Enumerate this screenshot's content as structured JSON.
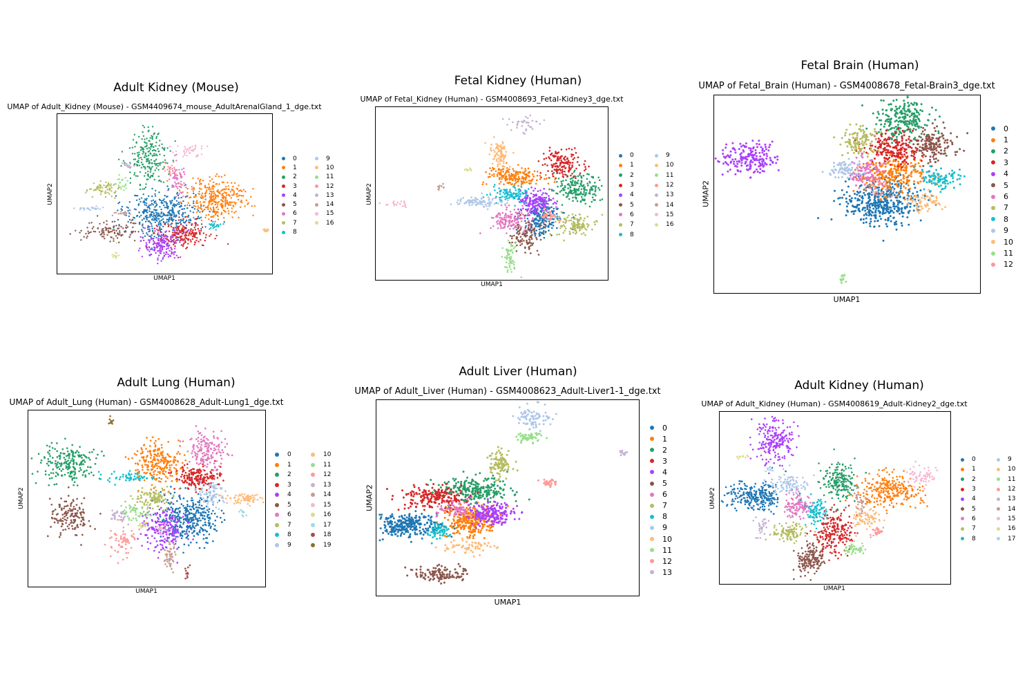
{
  "palette": [
    "#1f77b4",
    "#ff7f0e",
    "#279e68",
    "#d62728",
    "#aa40fc",
    "#8c564b",
    "#e377c2",
    "#b5bd61",
    "#17becf",
    "#aec7e8",
    "#ffbb78",
    "#98df8a",
    "#ff9896",
    "#c5b0d5",
    "#c49c94",
    "#f7b6d2",
    "#dbdb8d",
    "#9edae5",
    "#ad494a",
    "#8c6d31"
  ],
  "chart_data": [
    {
      "type": "scatter",
      "title": "Adult Kidney (Mouse)",
      "subtitle": "UMAP of Adult_Kidney (Mouse) - GSM4409674_mouse_AdultArenalGland_1_dge.txt",
      "xlabel": "UMAP1",
      "ylabel": "UMAP2",
      "legend_position": "right",
      "legend_columns": 2,
      "legend": [
        "0",
        "1",
        "2",
        "3",
        "4",
        "5",
        "6",
        "7",
        "8",
        "9",
        "10",
        "11",
        "12",
        "13",
        "14",
        "15",
        "16"
      ],
      "clusters": [
        {
          "label": "0",
          "cx": 0.49,
          "cy": 0.63,
          "sx": 0.09,
          "sy": 0.07,
          "n": 420
        },
        {
          "label": "1",
          "cx": 0.74,
          "cy": 0.53,
          "sx": 0.07,
          "sy": 0.06,
          "n": 330
        },
        {
          "label": "2",
          "cx": 0.42,
          "cy": 0.28,
          "sx": 0.045,
          "sy": 0.09,
          "n": 220
        },
        {
          "label": "3",
          "cx": 0.59,
          "cy": 0.75,
          "sx": 0.06,
          "sy": 0.04,
          "n": 200
        },
        {
          "label": "4",
          "cx": 0.48,
          "cy": 0.82,
          "sx": 0.05,
          "sy": 0.05,
          "n": 180
        },
        {
          "label": "5",
          "cx": 0.24,
          "cy": 0.73,
          "sx": 0.06,
          "sy": 0.03,
          "n": 110
        },
        {
          "label": "6",
          "cx": 0.56,
          "cy": 0.4,
          "sx": 0.025,
          "sy": 0.06,
          "n": 70
        },
        {
          "label": "7",
          "cx": 0.22,
          "cy": 0.47,
          "sx": 0.04,
          "sy": 0.025,
          "n": 70
        },
        {
          "label": "8",
          "cx": 0.73,
          "cy": 0.7,
          "sx": 0.015,
          "sy": 0.012,
          "n": 25
        },
        {
          "label": "9",
          "cx": 0.15,
          "cy": 0.59,
          "sx": 0.03,
          "sy": 0.006,
          "n": 25
        },
        {
          "label": "10",
          "cx": 0.97,
          "cy": 0.73,
          "sx": 0.012,
          "sy": 0.006,
          "n": 15
        },
        {
          "label": "11",
          "cx": 0.3,
          "cy": 0.44,
          "sx": 0.015,
          "sy": 0.025,
          "n": 20
        },
        {
          "label": "12",
          "cx": 0.53,
          "cy": 0.35,
          "sx": 0.012,
          "sy": 0.02,
          "n": 20
        },
        {
          "label": "13",
          "cx": 0.33,
          "cy": 0.32,
          "sx": 0.015,
          "sy": 0.012,
          "n": 15
        },
        {
          "label": "14",
          "cx": 0.3,
          "cy": 0.62,
          "sx": 0.02,
          "sy": 0.012,
          "n": 20
        },
        {
          "label": "15",
          "cx": 0.62,
          "cy": 0.23,
          "sx": 0.035,
          "sy": 0.025,
          "n": 40
        },
        {
          "label": "16",
          "cx": 0.27,
          "cy": 0.86,
          "sx": 0.01,
          "sy": 0.03,
          "n": 12
        }
      ]
    },
    {
      "type": "scatter",
      "title": "Fetal Kidney (Human)",
      "subtitle": "UMAP of Fetal_Kidney (Human) - GSM4008693_Fetal-Kidney3_dge.txt",
      "xlabel": "UMAP1",
      "ylabel": "UMAP2",
      "legend_position": "right",
      "legend_columns": 2,
      "legend": [
        "0",
        "1",
        "2",
        "3",
        "4",
        "5",
        "6",
        "7",
        "8",
        "9",
        "10",
        "11",
        "12",
        "13",
        "14",
        "15",
        "16"
      ],
      "clusters": [
        {
          "label": "0",
          "cx": 0.72,
          "cy": 0.64,
          "sx": 0.04,
          "sy": 0.05,
          "n": 220
        },
        {
          "label": "1",
          "cx": 0.6,
          "cy": 0.4,
          "sx": 0.06,
          "sy": 0.03,
          "n": 200
        },
        {
          "label": "2",
          "cx": 0.87,
          "cy": 0.47,
          "sx": 0.05,
          "sy": 0.04,
          "n": 200
        },
        {
          "label": "3",
          "cx": 0.8,
          "cy": 0.33,
          "sx": 0.04,
          "sy": 0.04,
          "n": 160
        },
        {
          "label": "4",
          "cx": 0.69,
          "cy": 0.55,
          "sx": 0.04,
          "sy": 0.035,
          "n": 170
        },
        {
          "label": "5",
          "cx": 0.65,
          "cy": 0.75,
          "sx": 0.035,
          "sy": 0.05,
          "n": 120
        },
        {
          "label": "6",
          "cx": 0.58,
          "cy": 0.65,
          "sx": 0.04,
          "sy": 0.035,
          "n": 130
        },
        {
          "label": "7",
          "cx": 0.86,
          "cy": 0.68,
          "sx": 0.04,
          "sy": 0.03,
          "n": 120
        },
        {
          "label": "8",
          "cx": 0.58,
          "cy": 0.5,
          "sx": 0.04,
          "sy": 0.025,
          "n": 100
        },
        {
          "label": "9",
          "cx": 0.45,
          "cy": 0.55,
          "sx": 0.06,
          "sy": 0.015,
          "n": 90
        },
        {
          "label": "10",
          "cx": 0.53,
          "cy": 0.27,
          "sx": 0.02,
          "sy": 0.04,
          "n": 90
        },
        {
          "label": "11",
          "cx": 0.58,
          "cy": 0.87,
          "sx": 0.015,
          "sy": 0.05,
          "n": 60
        },
        {
          "label": "12",
          "cx": 0.75,
          "cy": 0.63,
          "sx": 0.02,
          "sy": 0.02,
          "n": 40
        },
        {
          "label": "13",
          "cx": 0.63,
          "cy": 0.1,
          "sx": 0.035,
          "sy": 0.025,
          "n": 35
        },
        {
          "label": "14",
          "cx": 0.28,
          "cy": 0.46,
          "sx": 0.01,
          "sy": 0.008,
          "n": 10
        },
        {
          "label": "15",
          "cx": 0.09,
          "cy": 0.56,
          "sx": 0.03,
          "sy": 0.01,
          "n": 20
        },
        {
          "label": "16",
          "cx": 0.4,
          "cy": 0.36,
          "sx": 0.012,
          "sy": 0.006,
          "n": 10
        }
      ]
    },
    {
      "type": "scatter",
      "title": "Fetal Brain (Human)",
      "subtitle": "UMAP of Fetal_Brain (Human) - GSM4008678_Fetal-Brain3_dge.txt",
      "xlabel": "UMAP1",
      "ylabel": "UMAP2",
      "legend_position": "right",
      "legend_columns": 1,
      "legend": [
        "0",
        "1",
        "2",
        "3",
        "4",
        "5",
        "6",
        "7",
        "8",
        "9",
        "10",
        "11",
        "12"
      ],
      "clusters": [
        {
          "label": "0",
          "cx": 0.63,
          "cy": 0.54,
          "sx": 0.07,
          "sy": 0.06,
          "n": 420
        },
        {
          "label": "1",
          "cx": 0.67,
          "cy": 0.4,
          "sx": 0.06,
          "sy": 0.05,
          "n": 260
        },
        {
          "label": "2",
          "cx": 0.71,
          "cy": 0.12,
          "sx": 0.055,
          "sy": 0.05,
          "n": 240
        },
        {
          "label": "3",
          "cx": 0.68,
          "cy": 0.27,
          "sx": 0.05,
          "sy": 0.04,
          "n": 200
        },
        {
          "label": "4",
          "cx": 0.13,
          "cy": 0.32,
          "sx": 0.055,
          "sy": 0.04,
          "n": 200
        },
        {
          "label": "5",
          "cx": 0.82,
          "cy": 0.25,
          "sx": 0.04,
          "sy": 0.04,
          "n": 160
        },
        {
          "label": "6",
          "cx": 0.57,
          "cy": 0.39,
          "sx": 0.035,
          "sy": 0.04,
          "n": 110
        },
        {
          "label": "7",
          "cx": 0.55,
          "cy": 0.23,
          "sx": 0.035,
          "sy": 0.035,
          "n": 110
        },
        {
          "label": "8",
          "cx": 0.85,
          "cy": 0.42,
          "sx": 0.04,
          "sy": 0.025,
          "n": 90
        },
        {
          "label": "9",
          "cx": 0.49,
          "cy": 0.37,
          "sx": 0.03,
          "sy": 0.025,
          "n": 70
        },
        {
          "label": "10",
          "cx": 0.8,
          "cy": 0.54,
          "sx": 0.03,
          "sy": 0.025,
          "n": 60
        },
        {
          "label": "11",
          "cx": 0.48,
          "cy": 0.93,
          "sx": 0.006,
          "sy": 0.015,
          "n": 12
        },
        {
          "label": "12",
          "cx": 0.61,
          "cy": 0.47,
          "sx": 0.02,
          "sy": 0.02,
          "n": 30
        }
      ]
    },
    {
      "type": "scatter",
      "title": "Adult Lung (Human)",
      "subtitle": "UMAP of Adult_Lung (Human) - GSM4008628_Adult-Lung1_dge.txt",
      "xlabel": "UMAP1",
      "ylabel": "UMAP2",
      "legend_position": "right",
      "legend_columns": 2,
      "legend": [
        "0",
        "1",
        "2",
        "3",
        "4",
        "5",
        "6",
        "7",
        "8",
        "9",
        "10",
        "11",
        "12",
        "13",
        "14",
        "15",
        "16",
        "17",
        "18",
        "19"
      ],
      "clusters": [
        {
          "label": "0",
          "cx": 0.68,
          "cy": 0.62,
          "sx": 0.06,
          "sy": 0.07,
          "n": 360
        },
        {
          "label": "1",
          "cx": 0.55,
          "cy": 0.3,
          "sx": 0.05,
          "sy": 0.06,
          "n": 240
        },
        {
          "label": "2",
          "cx": 0.17,
          "cy": 0.3,
          "sx": 0.06,
          "sy": 0.05,
          "n": 210
        },
        {
          "label": "3",
          "cx": 0.71,
          "cy": 0.38,
          "sx": 0.05,
          "sy": 0.035,
          "n": 170
        },
        {
          "label": "4",
          "cx": 0.57,
          "cy": 0.67,
          "sx": 0.045,
          "sy": 0.06,
          "n": 200
        },
        {
          "label": "5",
          "cx": 0.18,
          "cy": 0.6,
          "sx": 0.04,
          "sy": 0.05,
          "n": 150
        },
        {
          "label": "6",
          "cx": 0.75,
          "cy": 0.23,
          "sx": 0.04,
          "sy": 0.05,
          "n": 150
        },
        {
          "label": "7",
          "cx": 0.53,
          "cy": 0.5,
          "sx": 0.04,
          "sy": 0.03,
          "n": 110
        },
        {
          "label": "8",
          "cx": 0.43,
          "cy": 0.38,
          "sx": 0.05,
          "sy": 0.015,
          "n": 60
        },
        {
          "label": "9",
          "cx": 0.78,
          "cy": 0.48,
          "sx": 0.03,
          "sy": 0.03,
          "n": 70
        },
        {
          "label": "10",
          "cx": 0.92,
          "cy": 0.5,
          "sx": 0.04,
          "sy": 0.015,
          "n": 70
        },
        {
          "label": "11",
          "cx": 0.45,
          "cy": 0.58,
          "sx": 0.03,
          "sy": 0.02,
          "n": 50
        },
        {
          "label": "12",
          "cx": 0.4,
          "cy": 0.75,
          "sx": 0.03,
          "sy": 0.05,
          "n": 60
        },
        {
          "label": "13",
          "cx": 0.38,
          "cy": 0.6,
          "sx": 0.02,
          "sy": 0.015,
          "n": 30
        },
        {
          "label": "14",
          "cx": 0.6,
          "cy": 0.83,
          "sx": 0.012,
          "sy": 0.05,
          "n": 50
        },
        {
          "label": "15",
          "cx": 0.56,
          "cy": 0.68,
          "sx": 0.015,
          "sy": 0.015,
          "n": 20
        },
        {
          "label": "16",
          "cx": 0.48,
          "cy": 0.65,
          "sx": 0.01,
          "sy": 0.01,
          "n": 10
        },
        {
          "label": "17",
          "cx": 0.91,
          "cy": 0.58,
          "sx": 0.01,
          "sy": 0.01,
          "n": 10
        },
        {
          "label": "18",
          "cx": 0.67,
          "cy": 0.92,
          "sx": 0.008,
          "sy": 0.02,
          "n": 12
        },
        {
          "label": "19",
          "cx": 0.35,
          "cy": 0.06,
          "sx": 0.005,
          "sy": 0.015,
          "n": 10
        }
      ]
    },
    {
      "type": "scatter",
      "title": "Adult Liver (Human)",
      "subtitle": "UMAP of Adult_Liver (Human) - GSM4008623_Adult-Liver1-1_dge.txt",
      "xlabel": "UMAP1",
      "ylabel": "UMAP2",
      "legend_position": "right",
      "legend_columns": 1,
      "legend": [
        "0",
        "1",
        "2",
        "3",
        "4",
        "5",
        "6",
        "7",
        "8",
        "9",
        "10",
        "11",
        "12",
        "13"
      ],
      "clusters": [
        {
          "label": "0",
          "cx": 0.12,
          "cy": 0.64,
          "sx": 0.06,
          "sy": 0.03,
          "n": 300
        },
        {
          "label": "1",
          "cx": 0.36,
          "cy": 0.62,
          "sx": 0.05,
          "sy": 0.04,
          "n": 260
        },
        {
          "label": "2",
          "cx": 0.37,
          "cy": 0.46,
          "sx": 0.07,
          "sy": 0.035,
          "n": 250
        },
        {
          "label": "3",
          "cx": 0.22,
          "cy": 0.5,
          "sx": 0.06,
          "sy": 0.03,
          "n": 200
        },
        {
          "label": "4",
          "cx": 0.44,
          "cy": 0.58,
          "sx": 0.045,
          "sy": 0.03,
          "n": 200
        },
        {
          "label": "5",
          "cx": 0.24,
          "cy": 0.89,
          "sx": 0.05,
          "sy": 0.02,
          "n": 120
        },
        {
          "label": "6",
          "cx": 0.3,
          "cy": 0.56,
          "sx": 0.03,
          "sy": 0.02,
          "n": 60
        },
        {
          "label": "7",
          "cx": 0.47,
          "cy": 0.33,
          "sx": 0.02,
          "sy": 0.04,
          "n": 100
        },
        {
          "label": "8",
          "cx": 0.24,
          "cy": 0.67,
          "sx": 0.02,
          "sy": 0.025,
          "n": 60
        },
        {
          "label": "9",
          "cx": 0.6,
          "cy": 0.09,
          "sx": 0.03,
          "sy": 0.03,
          "n": 80
        },
        {
          "label": "10",
          "cx": 0.36,
          "cy": 0.75,
          "sx": 0.05,
          "sy": 0.02,
          "n": 60
        },
        {
          "label": "11",
          "cx": 0.58,
          "cy": 0.19,
          "sx": 0.025,
          "sy": 0.012,
          "n": 50
        },
        {
          "label": "12",
          "cx": 0.66,
          "cy": 0.42,
          "sx": 0.015,
          "sy": 0.01,
          "n": 25
        },
        {
          "label": "13",
          "cx": 0.94,
          "cy": 0.27,
          "sx": 0.008,
          "sy": 0.006,
          "n": 10
        }
      ]
    },
    {
      "type": "scatter",
      "title": "Adult Kidney (Human)",
      "subtitle": "UMAP of Adult_Kidney (Human) - GSM4008619_Adult-Kidney2_dge.txt",
      "xlabel": "UMAP1",
      "ylabel": "UMAP2",
      "legend_position": "right",
      "legend_columns": 2,
      "legend": [
        "0",
        "1",
        "2",
        "3",
        "4",
        "5",
        "6",
        "7",
        "8",
        "9",
        "10",
        "11",
        "12",
        "13",
        "14",
        "15",
        "16",
        "17"
      ],
      "clusters": [
        {
          "label": "0",
          "cx": 0.15,
          "cy": 0.49,
          "sx": 0.06,
          "sy": 0.04,
          "n": 260
        },
        {
          "label": "1",
          "cx": 0.73,
          "cy": 0.46,
          "sx": 0.07,
          "sy": 0.05,
          "n": 280
        },
        {
          "label": "2",
          "cx": 0.52,
          "cy": 0.4,
          "sx": 0.035,
          "sy": 0.06,
          "n": 200
        },
        {
          "label": "3",
          "cx": 0.5,
          "cy": 0.7,
          "sx": 0.04,
          "sy": 0.06,
          "n": 220
        },
        {
          "label": "4",
          "cx": 0.24,
          "cy": 0.18,
          "sx": 0.04,
          "sy": 0.07,
          "n": 220
        },
        {
          "label": "5",
          "cx": 0.39,
          "cy": 0.86,
          "sx": 0.03,
          "sy": 0.04,
          "n": 160
        },
        {
          "label": "6",
          "cx": 0.34,
          "cy": 0.55,
          "sx": 0.03,
          "sy": 0.035,
          "n": 120
        },
        {
          "label": "7",
          "cx": 0.3,
          "cy": 0.7,
          "sx": 0.035,
          "sy": 0.025,
          "n": 110
        },
        {
          "label": "8",
          "cx": 0.42,
          "cy": 0.58,
          "sx": 0.02,
          "sy": 0.035,
          "n": 90
        },
        {
          "label": "9",
          "cx": 0.3,
          "cy": 0.42,
          "sx": 0.04,
          "sy": 0.03,
          "n": 90
        },
        {
          "label": "10",
          "cx": 0.63,
          "cy": 0.62,
          "sx": 0.03,
          "sy": 0.035,
          "n": 80
        },
        {
          "label": "11",
          "cx": 0.58,
          "cy": 0.8,
          "sx": 0.025,
          "sy": 0.02,
          "n": 50
        },
        {
          "label": "12",
          "cx": 0.68,
          "cy": 0.7,
          "sx": 0.015,
          "sy": 0.015,
          "n": 25
        },
        {
          "label": "13",
          "cx": 0.18,
          "cy": 0.65,
          "sx": 0.015,
          "sy": 0.04,
          "n": 30
        },
        {
          "label": "14",
          "cx": 0.61,
          "cy": 0.52,
          "sx": 0.015,
          "sy": 0.03,
          "n": 30
        },
        {
          "label": "15",
          "cx": 0.87,
          "cy": 0.37,
          "sx": 0.035,
          "sy": 0.03,
          "n": 60
        },
        {
          "label": "16",
          "cx": 0.1,
          "cy": 0.26,
          "sx": 0.015,
          "sy": 0.005,
          "n": 10
        },
        {
          "label": "17",
          "cx": 0.21,
          "cy": 0.33,
          "sx": 0.012,
          "sy": 0.008,
          "n": 10
        }
      ]
    }
  ]
}
